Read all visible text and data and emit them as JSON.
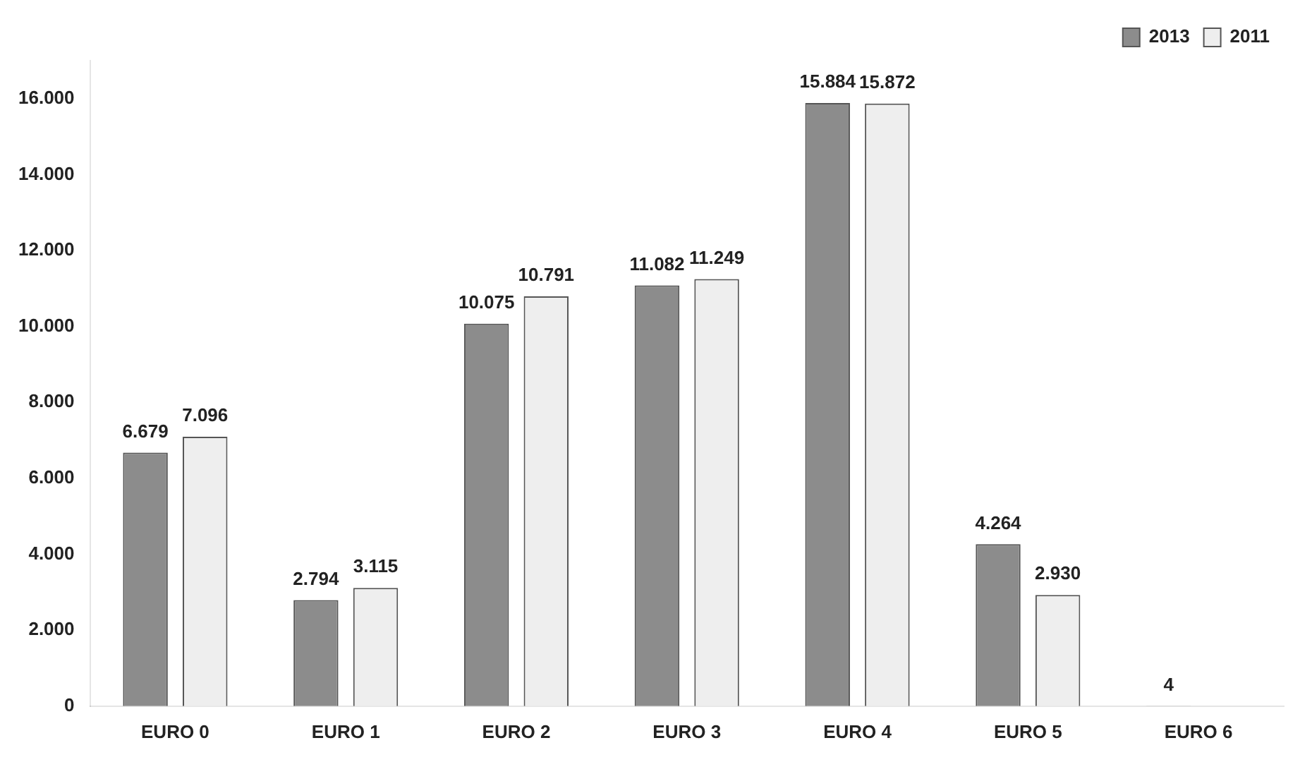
{
  "chart_data": {
    "type": "bar",
    "categories": [
      "EURO 0",
      "EURO 1",
      "EURO 2",
      "EURO 3",
      "EURO 4",
      "EURO 5",
      "EURO 6"
    ],
    "series": [
      {
        "name": "2013",
        "color": "#8c8c8c",
        "values": [
          6679,
          2794,
          10075,
          11082,
          15884,
          4264,
          4
        ],
        "value_labels": [
          "6.679",
          "2.794",
          "10.075",
          "11.082",
          "15.884",
          "4.264",
          "4"
        ]
      },
      {
        "name": "2011",
        "color": "#eeeeee",
        "values": [
          7096,
          3115,
          10791,
          11249,
          15872,
          2930,
          null
        ],
        "value_labels": [
          "7.096",
          "3.115",
          "10.791",
          "11.249",
          "15.872",
          "2.930",
          null
        ]
      }
    ],
    "ylim": [
      0,
      17000
    ],
    "yticks": [
      {
        "value": 0,
        "label": "0"
      },
      {
        "value": 2000,
        "label": "2.000"
      },
      {
        "value": 4000,
        "label": "4.000"
      },
      {
        "value": 6000,
        "label": "6.000"
      },
      {
        "value": 8000,
        "label": "8.000"
      },
      {
        "value": 10000,
        "label": "10.000"
      },
      {
        "value": 12000,
        "label": "12.000"
      },
      {
        "value": 14000,
        "label": "14.000"
      },
      {
        "value": 16000,
        "label": "16.000"
      }
    ],
    "legend": "top right",
    "grid": false
  }
}
